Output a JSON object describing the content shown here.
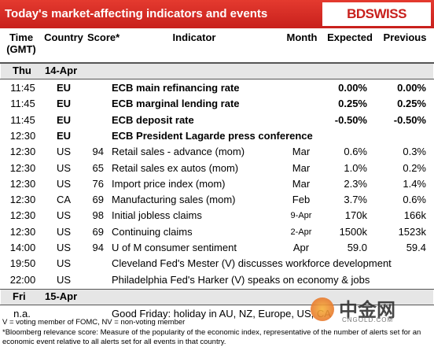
{
  "header": {
    "title": "Today's market-affecting indicators and events",
    "logo": "BDSWISS"
  },
  "table": {
    "columns": [
      "Time (GMT)",
      "Country",
      "Score*",
      "Indicator",
      "Month",
      "Expected",
      "Previous"
    ],
    "sections": [
      {
        "day": "Thu",
        "date": "14-Apr",
        "rows": [
          {
            "time": "11:45",
            "country": "EU",
            "indicator": "ECB main refinancing rate",
            "expected": "0.00%",
            "previous": "0.00%",
            "bold": true
          },
          {
            "time": "11:45",
            "country": "EU",
            "indicator": "ECB marginal lending rate",
            "expected": "0.25%",
            "previous": "0.25%",
            "bold": true
          },
          {
            "time": "11:45",
            "country": "EU",
            "indicator": "ECB deposit rate",
            "expected": "-0.50%",
            "previous": "-0.50%",
            "bold": true
          },
          {
            "time": "12:30",
            "country": "EU",
            "indicator": "ECB President Lagarde press conference",
            "bold": true
          },
          {
            "time": "12:30",
            "country": "US",
            "score": "94",
            "indicator": "Retail sales - advance (mom)",
            "month": "Mar",
            "expected": "0.6%",
            "previous": "0.3%"
          },
          {
            "time": "12:30",
            "country": "US",
            "score": "65",
            "indicator": "Retail sales ex autos (mom)",
            "month": "Mar",
            "expected": "1.0%",
            "previous": "0.2%"
          },
          {
            "time": "12:30",
            "country": "US",
            "score": "76",
            "indicator": "Import price index (mom)",
            "month": "Mar",
            "expected": "2.3%",
            "previous": "1.4%"
          },
          {
            "time": "12:30",
            "country": "CA",
            "score": "69",
            "indicator": "Manufacturing sales (mom)",
            "month": "Feb",
            "expected": "3.7%",
            "previous": "0.6%"
          },
          {
            "time": "12:30",
            "country": "US",
            "score": "98",
            "indicator": "Initial jobless claims",
            "month": "9-Apr",
            "expected": "170k",
            "previous": "166k"
          },
          {
            "time": "12:30",
            "country": "US",
            "score": "69",
            "indicator": "Continuing claims",
            "month": "2-Apr",
            "expected": "1500k",
            "previous": "1523k"
          },
          {
            "time": "14:00",
            "country": "US",
            "score": "94",
            "indicator": "U of M consumer sentiment",
            "month": "Apr",
            "expected": "59.0",
            "previous": "59.4"
          },
          {
            "time": "19:50",
            "country": "US",
            "indicator": "Cleveland Fed's Mester (V) discusses workforce development"
          },
          {
            "time": "22:00",
            "country": "US",
            "indicator": "Philadelphia Fed's Harker (V) speaks on economy & jobs"
          }
        ]
      },
      {
        "day": "Fri",
        "date": "15-Apr",
        "rows": [
          {
            "time": "n.a.",
            "indicator": "Good Friday: holiday in AU, NZ, Europe, US, CA"
          }
        ]
      }
    ]
  },
  "notes": [
    "V = voting member of FOMC, NV = non-voting member",
    "*Bloomberg relevance score:  Measure of the popularity of the economic index, representative of the number of alerts set for an economic event relative to all alerts set for all events in that country."
  ],
  "watermark": {
    "text": "中金网",
    "site": "CNGOLD.COM"
  }
}
